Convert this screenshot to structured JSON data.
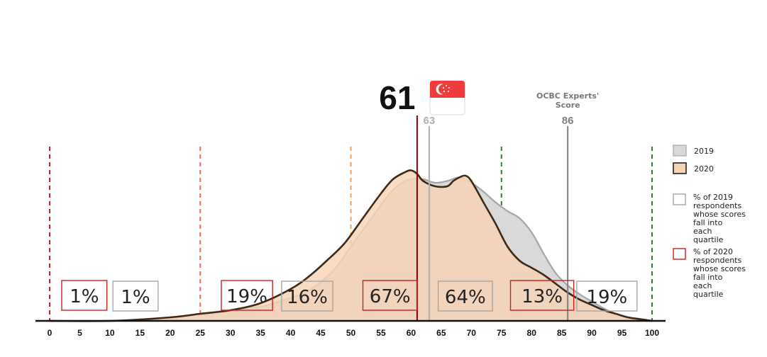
{
  "chart_data": {
    "type": "area",
    "xlim": [
      0,
      100
    ],
    "x_ticks": [
      "0",
      "5",
      "10",
      "15",
      "20",
      "25",
      "30",
      "35",
      "40",
      "45",
      "50",
      "55",
      "60",
      "65",
      "70",
      "75",
      "80",
      "85",
      "90",
      "95",
      "100"
    ],
    "series": [
      {
        "name": "2019",
        "fill": "#d9d9d9",
        "stroke": "#a6a6a6",
        "points": [
          [
            0,
            0
          ],
          [
            10,
            0
          ],
          [
            20,
            2
          ],
          [
            25,
            4
          ],
          [
            30,
            6
          ],
          [
            35,
            8
          ],
          [
            40,
            13
          ],
          [
            43,
            17
          ],
          [
            47,
            28
          ],
          [
            50,
            42
          ],
          [
            53,
            56
          ],
          [
            56,
            70
          ],
          [
            58,
            77
          ],
          [
            60,
            80
          ],
          [
            62,
            80
          ],
          [
            64,
            78
          ],
          [
            66,
            79
          ],
          [
            68,
            81
          ],
          [
            70,
            78
          ],
          [
            72,
            73
          ],
          [
            74,
            67
          ],
          [
            76,
            62
          ],
          [
            78,
            58
          ],
          [
            80,
            50
          ],
          [
            82,
            38
          ],
          [
            84,
            27
          ],
          [
            86,
            20
          ],
          [
            88,
            15
          ],
          [
            90,
            11
          ],
          [
            92,
            7
          ],
          [
            94,
            4
          ],
          [
            96,
            2
          ],
          [
            98,
            1
          ],
          [
            100,
            0
          ]
        ]
      },
      {
        "name": "2020",
        "fill": "#f7d3b4",
        "stroke": "#3f2814",
        "points": [
          [
            0,
            0
          ],
          [
            10,
            0
          ],
          [
            20,
            2
          ],
          [
            25,
            4
          ],
          [
            30,
            6
          ],
          [
            35,
            10
          ],
          [
            40,
            18
          ],
          [
            43,
            25
          ],
          [
            46,
            34
          ],
          [
            49,
            44
          ],
          [
            52,
            58
          ],
          [
            55,
            72
          ],
          [
            57,
            80
          ],
          [
            59,
            84
          ],
          [
            60,
            85
          ],
          [
            61,
            83
          ],
          [
            62,
            79
          ],
          [
            64,
            76
          ],
          [
            66,
            76
          ],
          [
            67,
            79
          ],
          [
            68,
            81
          ],
          [
            69,
            82
          ],
          [
            70,
            79
          ],
          [
            72,
            67
          ],
          [
            74,
            55
          ],
          [
            76,
            42
          ],
          [
            78,
            34
          ],
          [
            80,
            30
          ],
          [
            82,
            26
          ],
          [
            84,
            21
          ],
          [
            86,
            16
          ],
          [
            88,
            12
          ],
          [
            90,
            9
          ],
          [
            92,
            6
          ],
          [
            94,
            4
          ],
          [
            96,
            2
          ],
          [
            98,
            1
          ],
          [
            100,
            0
          ]
        ]
      }
    ],
    "quartile_lines": [
      {
        "x": 0,
        "color": "#cc1f1f"
      },
      {
        "x": 25,
        "color": "#ee6b5b"
      },
      {
        "x": 50,
        "color": "#f0a050"
      },
      {
        "x": 75,
        "color": "#2e7d32"
      },
      {
        "x": 100,
        "color": "#2e7d32"
      }
    ],
    "score_markers": [
      {
        "x": 61,
        "label": "61",
        "color": "#8b0000"
      },
      {
        "x": 63,
        "label": "63",
        "color": "#b0b0b0"
      },
      {
        "x": 86,
        "label": "86",
        "color": "#808080",
        "title_lines": [
          "OCBC Experts'",
          "Score"
        ]
      }
    ],
    "quartile_boxes": [
      {
        "x_start": 2,
        "x_end": 9.5,
        "label": "1%",
        "series": "2020"
      },
      {
        "x_start": 10.5,
        "x_end": 18,
        "label": "1%",
        "series": "2019"
      },
      {
        "x_start": 28.5,
        "x_end": 37,
        "label": "19%",
        "series": "2020"
      },
      {
        "x_start": 38.5,
        "x_end": 47,
        "label": "16%",
        "series": "2019"
      },
      {
        "x_start": 52,
        "x_end": 61,
        "label": "67%",
        "series": "2020"
      },
      {
        "x_start": 64.5,
        "x_end": 73.5,
        "label": "64%",
        "series": "2019"
      },
      {
        "x_start": 76.5,
        "x_end": 87,
        "label": "13%",
        "series": "2020"
      },
      {
        "x_start": 87.5,
        "x_end": 97.5,
        "label": "19%",
        "series": "2019"
      }
    ],
    "legend": {
      "position": "right",
      "items": [
        {
          "label": "2019",
          "kind": "area",
          "fill": "#d9d9d9",
          "stroke": "#a6a6a6"
        },
        {
          "label": "2020",
          "kind": "area",
          "fill": "#f7d3b4",
          "stroke": "#222222"
        },
        {
          "label": "% of 2019 respondents whose scores fall into each quartile",
          "kind": "box",
          "stroke": "#a6a6a6"
        },
        {
          "label": "% of 2020 respondents whose scores fall into each quartile",
          "kind": "box",
          "stroke": "#cc1f1f"
        }
      ]
    },
    "colors": {
      "box_2019": "#a6a6a6",
      "box_2020": "#cc1f1f",
      "flag_red": "#ee3b3b"
    }
  }
}
